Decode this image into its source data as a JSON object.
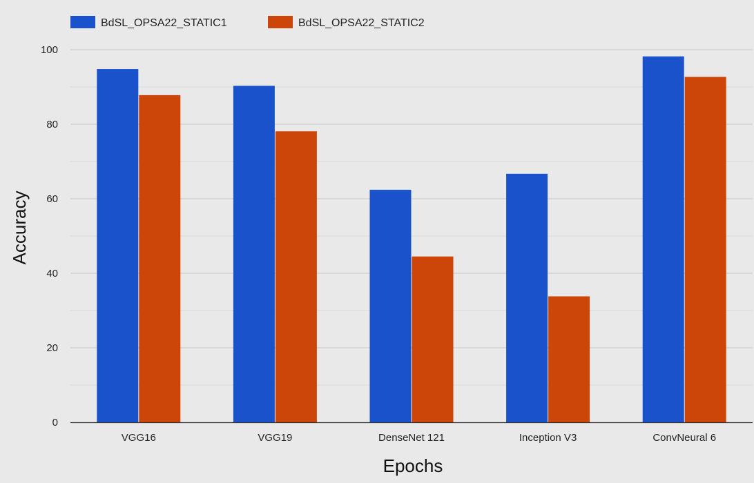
{
  "chart_data": {
    "type": "bar",
    "title": "",
    "xlabel": "Epochs",
    "ylabel": "Accuracy",
    "ylim": [
      0,
      100
    ],
    "yticks": [
      0,
      20,
      40,
      60,
      80,
      100
    ],
    "categories": [
      "VGG16",
      "VGG19",
      "DenseNet 121",
      "Inception V3",
      "ConvNeural 6"
    ],
    "series": [
      {
        "name": "BdSL_OPSA22_STATIC1",
        "color": "#1a52cc",
        "values": [
          94.8,
          90.3,
          62.4,
          66.7,
          98.2
        ]
      },
      {
        "name": "BdSL_OPSA22_STATIC2",
        "color": "#cc4609",
        "values": [
          87.8,
          78.1,
          44.5,
          33.8,
          92.7
        ]
      }
    ],
    "grid": true,
    "legend_position": "top-left"
  }
}
